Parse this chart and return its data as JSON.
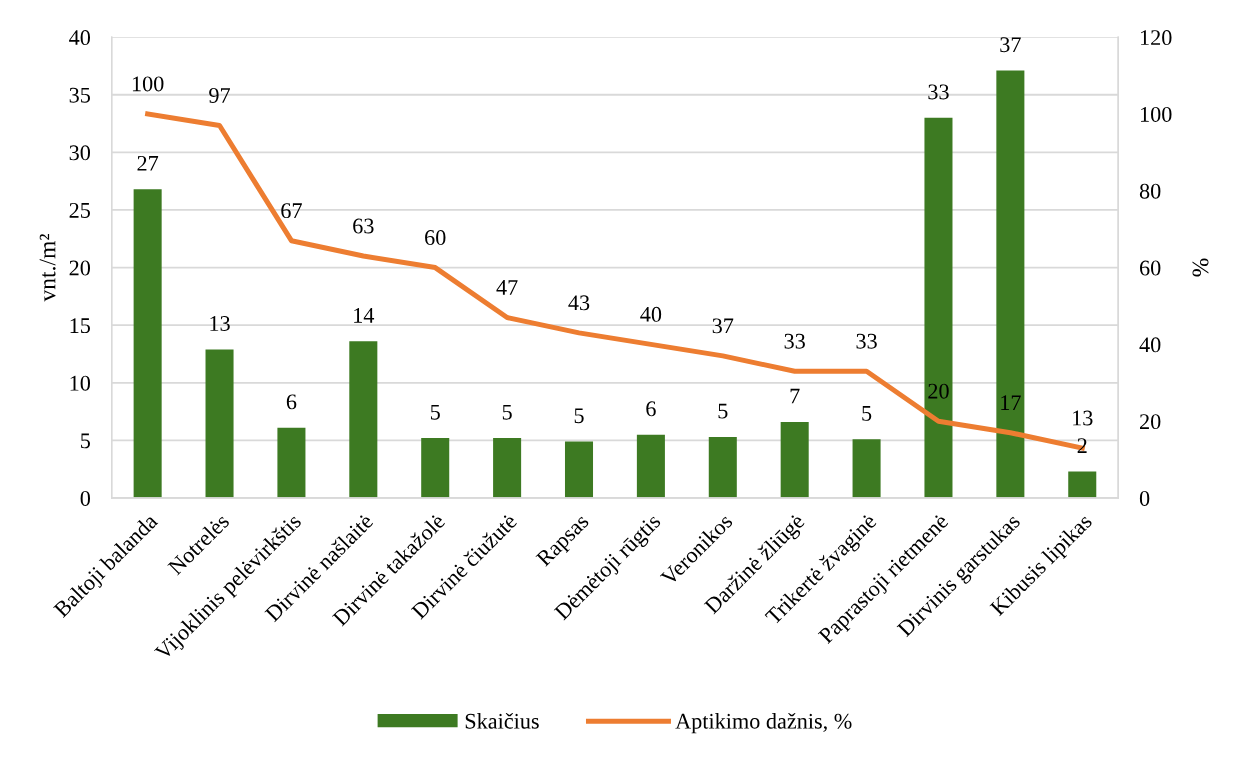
{
  "chart_data": {
    "type": "bar",
    "categories": [
      "Baltoji balanda",
      "Notrelės",
      "Vijoklinis pelėvirkštis",
      "Dirvinė našlaitė",
      "Dirvinė takažolė",
      "Dirvinė čiužutė",
      "Rapsas",
      "Dėmėtoji rūgtis",
      "Veronikos",
      "Daržinė žliūgė",
      "Trikertė žvaginė",
      "Paprastoji rietmenė",
      "Dirvinis garstukas",
      "Kibusis lipikas"
    ],
    "series": [
      {
        "name": "Skaičius",
        "color": "#3d7a22",
        "values": [
          26.8,
          12.9,
          6.1,
          13.6,
          5.2,
          5.2,
          4.9,
          5.5,
          5.3,
          6.6,
          5.1,
          33.0,
          37.1,
          2.3
        ],
        "value_labels": [
          "27",
          "13",
          "6",
          "14",
          "5",
          "5",
          "5",
          "6",
          "5",
          "7",
          "5",
          "33",
          "37",
          "2"
        ]
      },
      {
        "name": "Aptikimo dažnis, %",
        "type": "line",
        "axis": "y2",
        "color": "#ed7d31",
        "values": [
          100,
          97,
          67,
          63,
          60,
          47,
          43,
          40,
          37,
          33,
          33,
          20,
          17,
          13
        ],
        "value_labels": [
          "100",
          "97",
          "67",
          "63",
          "60",
          "47",
          "43",
          "40",
          "37",
          "33",
          "33",
          "20",
          "17",
          "13"
        ]
      }
    ],
    "ylabel": "vnt./m²",
    "y2label": "%",
    "ylim": [
      0,
      40
    ],
    "yticks": [
      0,
      5,
      10,
      15,
      20,
      25,
      30,
      35,
      40
    ],
    "y2lim": [
      0,
      120
    ],
    "y2ticks": [
      0,
      20,
      40,
      60,
      80,
      100,
      120
    ],
    "grid": "y",
    "legend": "bottom"
  }
}
